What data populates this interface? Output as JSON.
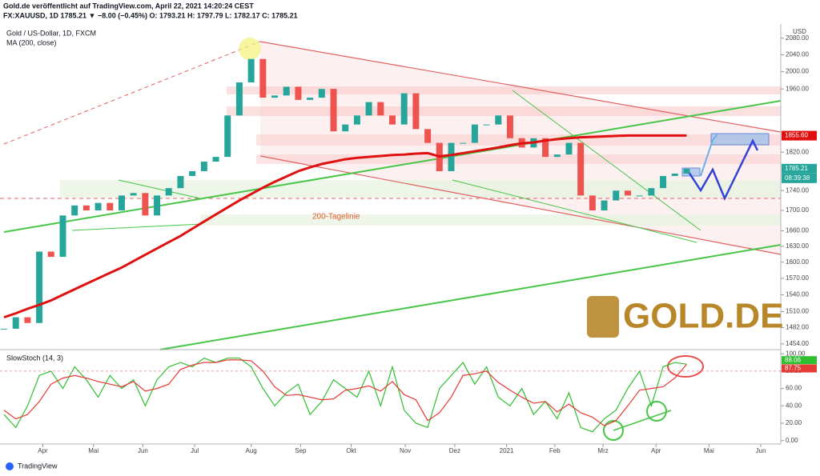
{
  "header": {
    "line1": "Gold.de veröffentlicht auf TradingView.com, April 22, 2021 14:20:24 CEST",
    "line2": "FX:XAUUSD, 1D 1785.21 ▼ −8.00 (−0.45%) O: 1793.21 H: 1797.79 L: 1782.17 C: 1785.21"
  },
  "footer": {
    "brand": "TradingView"
  },
  "chart_data": [
    {
      "type": "candle",
      "title": "Gold  / US-Dollar, 1D, FXCM",
      "unit": "USD",
      "log_scale": true,
      "annotation": "200-Tagelinie",
      "logo": "GOLD.DE",
      "price_labels": [
        {
          "value": 1855.6,
          "label": "1855.60"
        },
        {
          "value": 1785.21,
          "label": "1785.21"
        }
      ],
      "countdown": "08:39:38",
      "xlim": [
        0,
        66
      ],
      "xticks": [
        {
          "value": 3.3,
          "label": "Apr"
        },
        {
          "value": 7.6,
          "label": "Mai"
        },
        {
          "value": 11.8,
          "label": "Jun"
        },
        {
          "value": 16.2,
          "label": "Jul"
        },
        {
          "value": 21,
          "label": "Aug"
        },
        {
          "value": 25.2,
          "label": "Sep"
        },
        {
          "value": 29.5,
          "label": "Okt"
        },
        {
          "value": 34.1,
          "label": "Nov"
        },
        {
          "value": 38.3,
          "label": "Dez"
        },
        {
          "value": 42.7,
          "label": "2021"
        },
        {
          "value": 46.8,
          "label": "Feb"
        },
        {
          "value": 50.9,
          "label": "Mrz"
        },
        {
          "value": 55.4,
          "label": "Apr"
        },
        {
          "value": 59.9,
          "label": "Mai"
        },
        {
          "value": 64.3,
          "label": "Jun"
        }
      ],
      "ylim": [
        1447,
        2105
      ],
      "yticks": [
        {
          "value": 2080,
          "label": "2080.00"
        },
        {
          "value": 2040,
          "label": "2040.00"
        },
        {
          "value": 2000,
          "label": "2000.00"
        },
        {
          "value": 1960,
          "label": "1960.00"
        },
        {
          "value": 1820,
          "label": "1820.00"
        },
        {
          "value": 1740,
          "label": "1740.00"
        },
        {
          "value": 1700,
          "label": "1700.00"
        },
        {
          "value": 1660,
          "label": "1660.00"
        },
        {
          "value": 1630,
          "label": "1630.00"
        },
        {
          "value": 1600,
          "label": "1600.00"
        },
        {
          "value": 1570,
          "label": "1570.00"
        },
        {
          "value": 1540,
          "label": "1540.00"
        },
        {
          "value": 1510,
          "label": "1510.00"
        },
        {
          "value": 1482,
          "label": "1482.00"
        },
        {
          "value": 1454,
          "label": "1454.00"
        }
      ],
      "series": [
        {
          "name": "Gold / US-Dollar",
          "color": "#26a69a",
          "values": [
            1480,
            1500,
            1490,
            1620,
            1610,
            1690,
            1710,
            1700,
            1715,
            1700,
            1730,
            1735,
            1690,
            1730,
            1745,
            1770,
            1780,
            1800,
            1810,
            1900,
            1975,
            2030,
            1940,
            1945,
            1965,
            1935,
            1940,
            1960,
            1865,
            1880,
            1900,
            1930,
            1900,
            1880,
            1950,
            1870,
            1840,
            1780,
            1840,
            1840,
            1880,
            1880,
            1900,
            1850,
            1830,
            1850,
            1810,
            1815,
            1840,
            1730,
            1700,
            1720,
            1740,
            1730,
            1730,
            1745,
            1770,
            1775,
            1785
          ]
        },
        {
          "name": "MA (200, close)",
          "color": "#e01010",
          "values": [
            1500,
            1507,
            1515,
            1522,
            1530,
            1540,
            1550,
            1560,
            1570,
            1580,
            1590,
            1602,
            1614,
            1626,
            1638,
            1650,
            1664,
            1678,
            1692,
            1706,
            1720,
            1733,
            1746,
            1758,
            1769,
            1780,
            1788,
            1795,
            1800,
            1805,
            1808,
            1810,
            1812,
            1814,
            1815,
            1817,
            1818,
            1811,
            1814,
            1818,
            1822,
            1826,
            1830,
            1835,
            1839,
            1841,
            1845,
            1848,
            1850,
            1852,
            1853,
            1854,
            1855,
            1856,
            1856,
            1856,
            1856,
            1856,
            1856
          ]
        }
      ]
    },
    {
      "type": "line",
      "title": "SlowStoch (14, 3)",
      "ylim": [
        -4,
        103
      ],
      "yticks": [
        {
          "value": 100,
          "label": "100.00"
        },
        {
          "value": 80,
          "label": "80.00"
        },
        {
          "value": 60,
          "label": "60.00"
        },
        {
          "value": 40,
          "label": "40.00"
        },
        {
          "value": 20,
          "label": "20.00"
        },
        {
          "value": 0,
          "label": "0.00"
        }
      ],
      "value_labels": [
        "88.06",
        "87.75"
      ],
      "series": [
        {
          "name": "%K",
          "color": "#2fbf2f",
          "values": [
            30,
            15,
            40,
            75,
            80,
            60,
            85,
            70,
            50,
            75,
            60,
            70,
            40,
            70,
            85,
            90,
            85,
            95,
            90,
            95,
            95,
            85,
            60,
            40,
            55,
            65,
            30,
            45,
            70,
            60,
            50,
            80,
            40,
            85,
            35,
            20,
            15,
            60,
            75,
            90,
            65,
            85,
            50,
            40,
            60,
            30,
            45,
            25,
            55,
            15,
            10,
            25,
            35,
            60,
            80,
            40,
            85,
            90,
            88.06
          ]
        },
        {
          "name": "%D",
          "color": "#e53935",
          "values": [
            35,
            25,
            30,
            45,
            65,
            72,
            75,
            72,
            68,
            65,
            62,
            68,
            57,
            60,
            65,
            82,
            87,
            90,
            90,
            93,
            93,
            92,
            80,
            62,
            52,
            53,
            50,
            47,
            48,
            58,
            60,
            63,
            57,
            68,
            53,
            47,
            23,
            32,
            50,
            75,
            77,
            80,
            67,
            58,
            50,
            43,
            45,
            33,
            42,
            32,
            27,
            17,
            23,
            40,
            58,
            60,
            62,
            72,
            87.75
          ]
        }
      ]
    }
  ]
}
